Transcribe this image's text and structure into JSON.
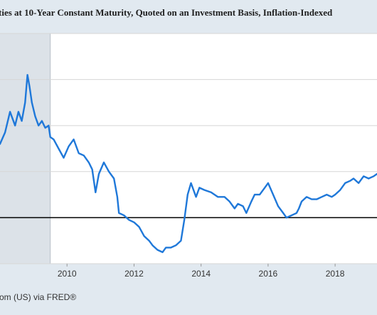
{
  "chart_data": {
    "type": "line",
    "title": "ties at 10-Year Constant Maturity, Quoted on an Investment Basis, Inflation-Indexed",
    "source": "om (US) via FRED®",
    "xlabel": "",
    "ylabel": "",
    "x_ticks": [
      "2010",
      "2012",
      "2014",
      "2016",
      "2018"
    ],
    "xlim": [
      2008.0,
      2019.25
    ],
    "ylim": [
      -1.0,
      4.0
    ],
    "y_gridlines": [
      -1,
      0,
      1,
      2,
      3,
      4
    ],
    "zero_line": 0,
    "recession_shading": [
      [
        2008.0,
        2009.5
      ]
    ],
    "grid": true,
    "colors": {
      "line": "#1f78d9",
      "recession": "#dce2e8",
      "grid": "#d6d6d6",
      "zero_line": "#000000",
      "plot_background": "#ffffff",
      "page_background": "#e1e9f0"
    },
    "series": [
      {
        "name": "",
        "points": [
          [
            2008.0,
            1.6
          ],
          [
            2008.15,
            1.85
          ],
          [
            2008.3,
            2.3
          ],
          [
            2008.45,
            2.0
          ],
          [
            2008.55,
            2.3
          ],
          [
            2008.65,
            2.1
          ],
          [
            2008.75,
            2.5
          ],
          [
            2008.82,
            3.1
          ],
          [
            2008.88,
            2.85
          ],
          [
            2008.95,
            2.5
          ],
          [
            2009.05,
            2.2
          ],
          [
            2009.15,
            2.0
          ],
          [
            2009.25,
            2.1
          ],
          [
            2009.35,
            1.95
          ],
          [
            2009.45,
            2.0
          ],
          [
            2009.5,
            1.75
          ],
          [
            2009.6,
            1.7
          ],
          [
            2009.75,
            1.5
          ],
          [
            2009.9,
            1.3
          ],
          [
            2010.05,
            1.55
          ],
          [
            2010.2,
            1.7
          ],
          [
            2010.35,
            1.4
          ],
          [
            2010.5,
            1.35
          ],
          [
            2010.65,
            1.2
          ],
          [
            2010.75,
            1.05
          ],
          [
            2010.85,
            0.55
          ],
          [
            2010.95,
            0.95
          ],
          [
            2011.1,
            1.2
          ],
          [
            2011.25,
            1.0
          ],
          [
            2011.4,
            0.85
          ],
          [
            2011.5,
            0.45
          ],
          [
            2011.55,
            0.1
          ],
          [
            2011.7,
            0.05
          ],
          [
            2011.85,
            -0.05
          ],
          [
            2012.0,
            -0.1
          ],
          [
            2012.15,
            -0.2
          ],
          [
            2012.3,
            -0.4
          ],
          [
            2012.45,
            -0.5
          ],
          [
            2012.55,
            -0.6
          ],
          [
            2012.7,
            -0.7
          ],
          [
            2012.85,
            -0.75
          ],
          [
            2012.95,
            -0.65
          ],
          [
            2013.1,
            -0.65
          ],
          [
            2013.25,
            -0.6
          ],
          [
            2013.4,
            -0.5
          ],
          [
            2013.5,
            -0.05
          ],
          [
            2013.6,
            0.5
          ],
          [
            2013.7,
            0.75
          ],
          [
            2013.85,
            0.45
          ],
          [
            2013.95,
            0.65
          ],
          [
            2014.1,
            0.6
          ],
          [
            2014.3,
            0.55
          ],
          [
            2014.5,
            0.45
          ],
          [
            2014.7,
            0.45
          ],
          [
            2014.85,
            0.35
          ],
          [
            2015.0,
            0.2
          ],
          [
            2015.1,
            0.3
          ],
          [
            2015.25,
            0.25
          ],
          [
            2015.35,
            0.1
          ],
          [
            2015.5,
            0.35
          ],
          [
            2015.6,
            0.5
          ],
          [
            2015.75,
            0.5
          ],
          [
            2015.9,
            0.65
          ],
          [
            2016.0,
            0.75
          ],
          [
            2016.15,
            0.5
          ],
          [
            2016.3,
            0.25
          ],
          [
            2016.45,
            0.1
          ],
          [
            2016.55,
            0.0
          ],
          [
            2016.7,
            0.05
          ],
          [
            2016.85,
            0.1
          ],
          [
            2016.92,
            0.2
          ],
          [
            2017.0,
            0.35
          ],
          [
            2017.15,
            0.45
          ],
          [
            2017.3,
            0.4
          ],
          [
            2017.45,
            0.4
          ],
          [
            2017.6,
            0.45
          ],
          [
            2017.75,
            0.5
          ],
          [
            2017.9,
            0.45
          ],
          [
            2018.0,
            0.5
          ],
          [
            2018.15,
            0.6
          ],
          [
            2018.3,
            0.75
          ],
          [
            2018.45,
            0.8
          ],
          [
            2018.55,
            0.85
          ],
          [
            2018.7,
            0.75
          ],
          [
            2018.85,
            0.9
          ],
          [
            2019.0,
            0.85
          ],
          [
            2019.15,
            0.9
          ],
          [
            2019.25,
            0.95
          ]
        ]
      }
    ]
  }
}
